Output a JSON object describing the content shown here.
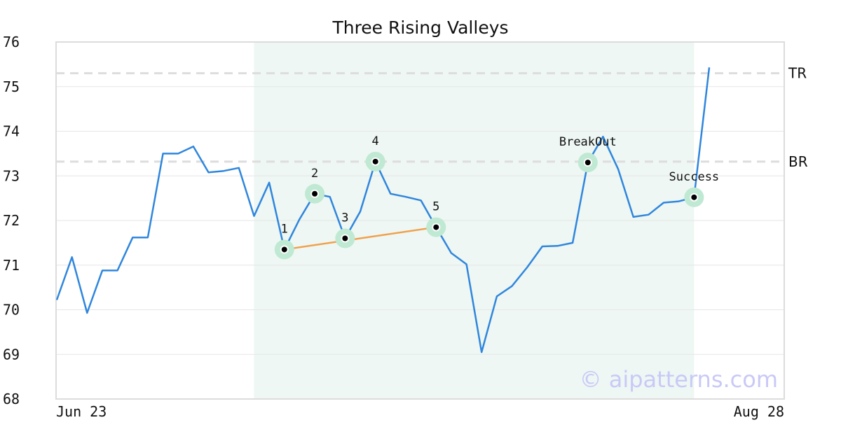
{
  "chart_data": {
    "type": "line",
    "title": "Three Rising Valleys",
    "x_tick_labels": [
      "Jun 23",
      "Aug 28"
    ],
    "y_ticks": [
      68,
      69,
      70,
      71,
      72,
      73,
      74,
      75,
      76
    ],
    "ylim": [
      68,
      76
    ],
    "grid": "horizontal",
    "series": [
      {
        "values": [
          70.22,
          71.18,
          69.93,
          70.88,
          70.88,
          71.62,
          71.62,
          73.5,
          73.5,
          73.66,
          73.08,
          73.11,
          73.18,
          72.1,
          72.85,
          71.35,
          72.03,
          72.6,
          72.53,
          71.6,
          72.2,
          73.32,
          72.6,
          72.53,
          72.45,
          71.85,
          71.27,
          71.02,
          69.05,
          70.3,
          70.53,
          70.95,
          71.42,
          71.43,
          71.5,
          73.3,
          73.88,
          73.15,
          72.08,
          72.13,
          72.4,
          72.43,
          72.52,
          75.43
        ],
        "color": "#2f86dd"
      }
    ],
    "highlight_range": {
      "start_index": 13,
      "end_index": 42,
      "color": "#eef7f3"
    },
    "reference_lines": [
      {
        "label": "TR",
        "y": 75.3
      },
      {
        "label": "BR",
        "y": 73.32
      }
    ],
    "trend_line": {
      "from_index": 15,
      "to_index": 25,
      "from_y": 71.35,
      "to_y": 71.85,
      "color": "#f0a04b"
    },
    "points": [
      {
        "label": "1",
        "index": 15,
        "y": 71.35
      },
      {
        "label": "2",
        "index": 17,
        "y": 72.6
      },
      {
        "label": "3",
        "index": 19,
        "y": 71.6
      },
      {
        "label": "4",
        "index": 21,
        "y": 73.32
      },
      {
        "label": "5",
        "index": 25,
        "y": 71.85
      },
      {
        "label": "BreakOut",
        "index": 35,
        "y": 73.3
      },
      {
        "label": "Success",
        "index": 42,
        "y": 72.52
      }
    ],
    "watermark": "© aipatterns.com"
  }
}
